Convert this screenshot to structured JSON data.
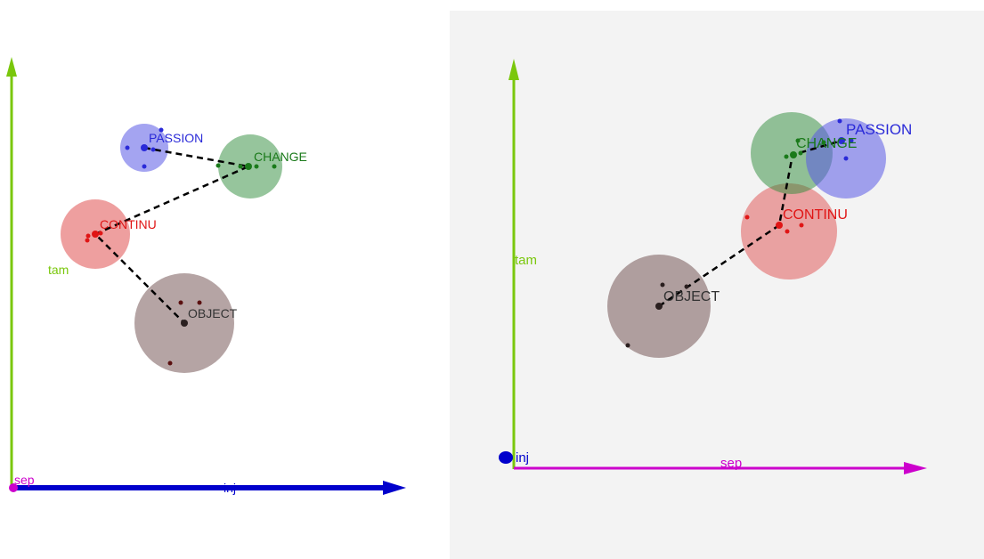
{
  "colors": {
    "tam": "#7ac70c",
    "inj": "#0000cc",
    "sep": "#cc00cc",
    "passion": "#2a2ad8",
    "change": "#1a7a1a",
    "continu": "#e01515",
    "object": "#2a1f1f",
    "link": "#000000"
  },
  "left_view": {
    "axes": {
      "vertical_label": "tam",
      "horizontal_label": "inj",
      "origin_label": "sep"
    },
    "clusters": [
      {
        "id": "passion",
        "label": "PASSION"
      },
      {
        "id": "change",
        "label": "CHANGE"
      },
      {
        "id": "continu",
        "label": "CONTINU"
      },
      {
        "id": "object",
        "label": "OBJECT"
      }
    ]
  },
  "right_view": {
    "axes": {
      "vertical_label": "tam",
      "horizontal_label": "sep",
      "origin_label": "inj"
    },
    "clusters": [
      {
        "id": "change",
        "label": "CHANGE"
      },
      {
        "id": "passion",
        "label": "PASSION"
      },
      {
        "id": "continu",
        "label": "CONTINU"
      },
      {
        "id": "object",
        "label": "OBJECT"
      }
    ]
  }
}
